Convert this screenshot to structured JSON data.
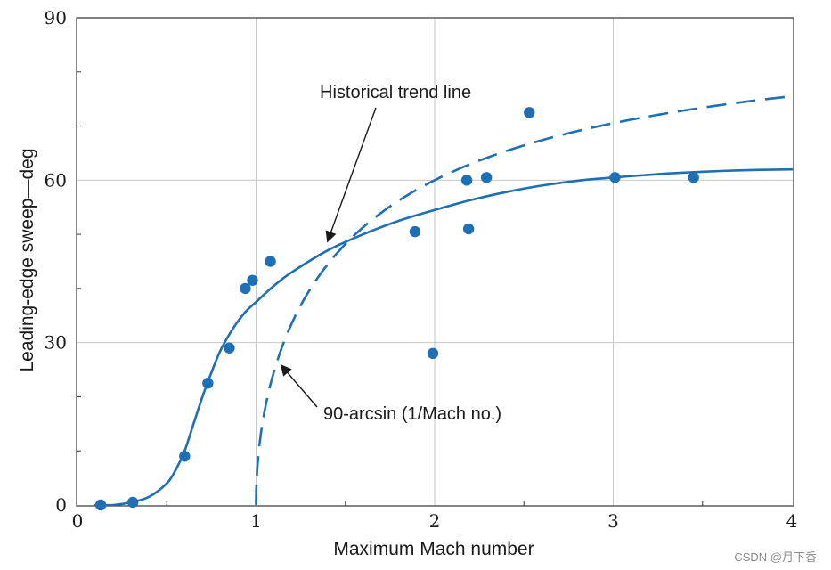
{
  "chart_data": {
    "type": "scatter",
    "title": "",
    "xlabel": "Maximum Mach number",
    "ylabel": "Leading-edge sweep—deg",
    "xlim": [
      0,
      4
    ],
    "ylim": [
      0,
      90
    ],
    "xticks": [
      0,
      1,
      2,
      3,
      4
    ],
    "yticks": [
      0,
      30,
      60,
      90
    ],
    "grid": true,
    "colors": {
      "series": "#1f6fb5",
      "grid": "#c8c8c8",
      "axis": "#333333",
      "text": "#1a1a1a"
    },
    "points": [
      {
        "x": 0.13,
        "y": 0
      },
      {
        "x": 0.31,
        "y": 0.5
      },
      {
        "x": 0.6,
        "y": 9
      },
      {
        "x": 0.73,
        "y": 22.5
      },
      {
        "x": 0.85,
        "y": 29
      },
      {
        "x": 0.94,
        "y": 40
      },
      {
        "x": 0.98,
        "y": 41.5
      },
      {
        "x": 1.08,
        "y": 45
      },
      {
        "x": 1.89,
        "y": 50.5
      },
      {
        "x": 1.99,
        "y": 28
      },
      {
        "x": 2.18,
        "y": 60
      },
      {
        "x": 2.19,
        "y": 51
      },
      {
        "x": 2.29,
        "y": 60.5
      },
      {
        "x": 2.53,
        "y": 72.5
      },
      {
        "x": 3.01,
        "y": 60.5
      },
      {
        "x": 3.45,
        "y": 60.5
      }
    ],
    "trend_line": {
      "name": "Historical trend line",
      "x": [
        0.1,
        0.2,
        0.3,
        0.4,
        0.5,
        0.55,
        0.6,
        0.65,
        0.7,
        0.75,
        0.8,
        0.85,
        0.9,
        0.95,
        1.0,
        1.1,
        1.2,
        1.4,
        1.6,
        1.8,
        2.0,
        2.2,
        2.4,
        2.6,
        2.8,
        3.0,
        3.2,
        3.4,
        3.6,
        3.8,
        4.0
      ],
      "y": [
        0,
        0,
        0.5,
        1.5,
        4,
        6.5,
        10,
        15,
        20,
        24.5,
        28.5,
        31.5,
        34,
        36,
        37.5,
        40.5,
        43,
        47,
        50,
        52.5,
        54.5,
        56.3,
        57.8,
        59,
        59.9,
        60.5,
        61,
        61.4,
        61.7,
        61.9,
        62
      ]
    },
    "arcsin_curve": {
      "name": "90-arcsin (1/Mach no.)",
      "style": "dashed",
      "x_start": 1.0,
      "x_end": 4.0
    },
    "annotations": [
      {
        "text": "Historical trend line",
        "target_x": 1.39,
        "target_y": 48
      },
      {
        "text": "90-arcsin (1/Mach no.)",
        "target_x": 1.12,
        "target_y": 26.5
      }
    ],
    "watermark": "CSDN @月下香"
  }
}
